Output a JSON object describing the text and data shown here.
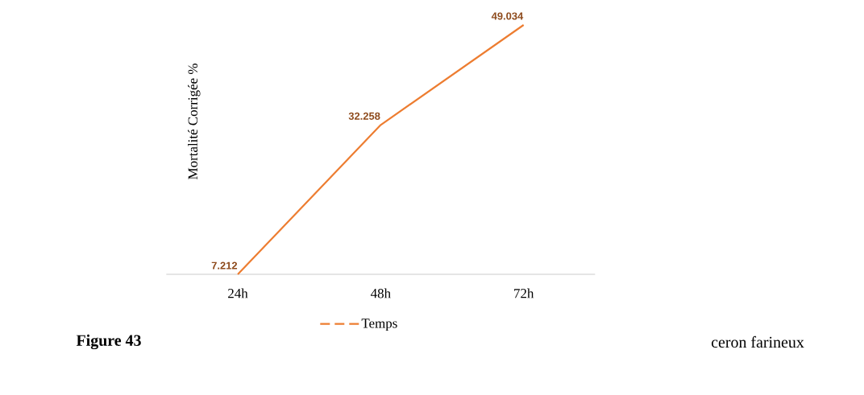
{
  "chart_data": {
    "type": "line",
    "ylabel": "Mortalité  Corrigée  %",
    "categories": [
      "24h",
      "48h",
      "72h"
    ],
    "series": [
      {
        "name": "Temps",
        "color": "#ed7d31",
        "values": [
          7.212,
          32.258,
          49.034
        ]
      }
    ],
    "data_labels": true,
    "legend": "bottom",
    "grid": false,
    "marker": "none",
    "line_style": "solid",
    "annotations": [
      "**Figure 43**",
      "ceron farineux"
    ]
  }
}
